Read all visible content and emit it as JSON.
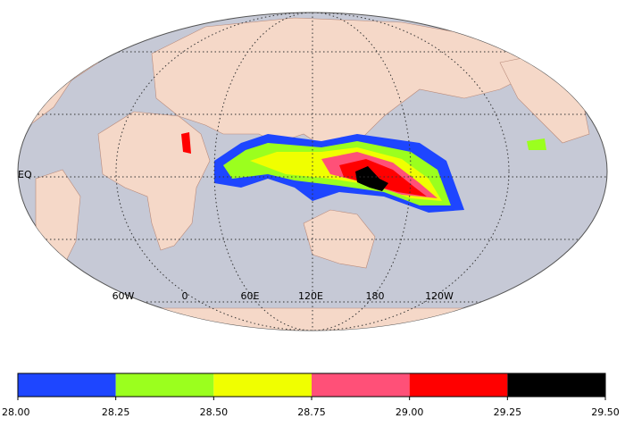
{
  "map": {
    "equator_label": "EQ",
    "longitude_labels": [
      "60W",
      "0",
      "60E",
      "120E",
      "180",
      "120W"
    ]
  },
  "colorbar": {
    "colors": [
      "#1e46ff",
      "#9bff1e",
      "#f0ff00",
      "#ff5078",
      "#ff0000",
      "#000000"
    ],
    "ticks": [
      {
        "value": 28,
        "label": "28.00"
      },
      {
        "value": 28.25,
        "label": "28.25"
      },
      {
        "value": 28.5,
        "label": "28.50"
      },
      {
        "value": 28.75,
        "label": "28.75"
      },
      {
        "value": 29,
        "label": "29.00"
      },
      {
        "value": 29.25,
        "label": "29.25"
      },
      {
        "value": 29.5,
        "label": "29.50"
      }
    ]
  }
}
